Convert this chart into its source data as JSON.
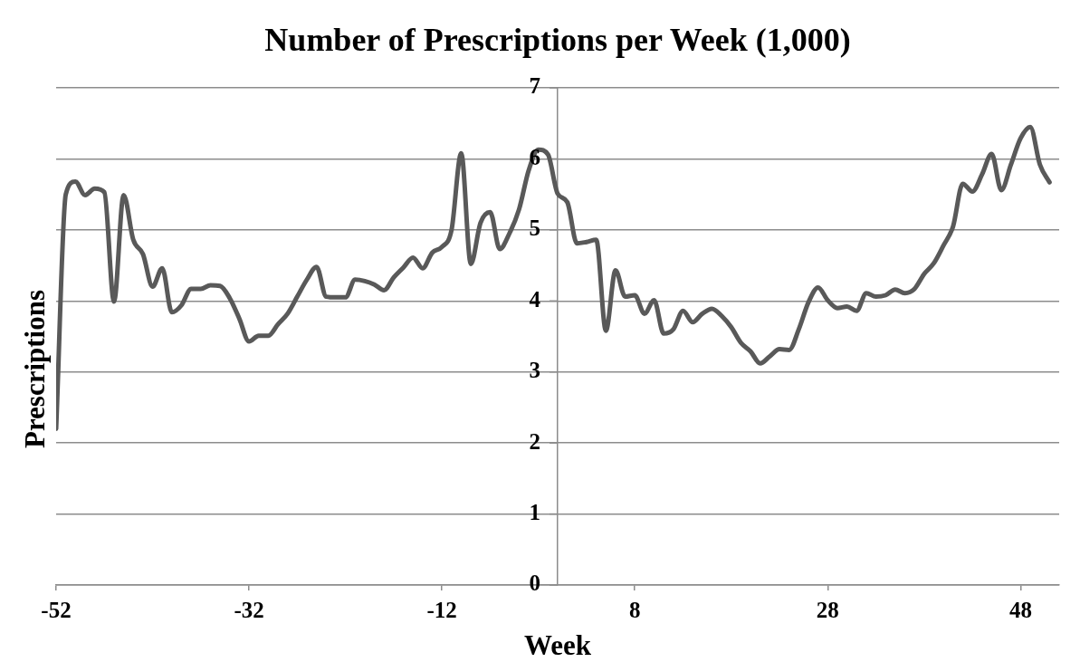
{
  "chart_data": {
    "type": "line",
    "title": "Number of Prescriptions per Week (1,000)",
    "xlabel": "Week",
    "ylabel": "Prescriptions",
    "x": [
      -52,
      -51,
      -50,
      -49,
      -48,
      -47,
      -46,
      -45,
      -44,
      -43,
      -42,
      -41,
      -40,
      -39,
      -38,
      -37,
      -36,
      -35,
      -34,
      -33,
      -32,
      -31,
      -30,
      -29,
      -28,
      -27,
      -26,
      -25,
      -24,
      -23,
      -22,
      -21,
      -20,
      -19,
      -18,
      -17,
      -16,
      -15,
      -14,
      -13,
      -12,
      -11,
      -10,
      -9,
      -8,
      -7,
      -6,
      -5,
      -4,
      -3,
      -2,
      -1,
      0,
      1,
      2,
      3,
      4,
      5,
      6,
      7,
      8,
      9,
      10,
      11,
      12,
      13,
      14,
      15,
      16,
      17,
      18,
      19,
      20,
      21,
      22,
      23,
      24,
      25,
      26,
      27,
      28,
      29,
      30,
      31,
      32,
      33,
      34,
      35,
      36,
      37,
      38,
      39,
      40,
      41,
      42,
      43,
      44,
      45,
      46,
      47,
      48,
      49,
      50,
      51
    ],
    "values": [
      2.2,
      5.5,
      5.68,
      5.49,
      5.58,
      5.53,
      3.99,
      5.49,
      4.86,
      4.66,
      4.2,
      4.46,
      3.84,
      3.94,
      4.17,
      4.17,
      4.22,
      4.21,
      4.04,
      3.75,
      3.43,
      3.51,
      3.51,
      3.67,
      3.82,
      4.06,
      4.3,
      4.48,
      4.06,
      4.05,
      4.05,
      4.3,
      4.28,
      4.23,
      4.15,
      4.33,
      4.47,
      4.61,
      4.46,
      4.68,
      4.76,
      5.0,
      6.08,
      4.52,
      5.1,
      5.25,
      4.73,
      4.95,
      5.29,
      5.84,
      6.13,
      6.06,
      5.51,
      5.39,
      4.81,
      4.83,
      4.86,
      3.58,
      4.43,
      4.06,
      4.08,
      3.82,
      4.01,
      3.54,
      3.6,
      3.86,
      3.7,
      3.82,
      3.89,
      3.79,
      3.63,
      3.41,
      3.29,
      3.12,
      3.22,
      3.32,
      3.31,
      3.6,
      3.98,
      4.19,
      4.01,
      3.9,
      3.92,
      3.86,
      4.11,
      4.06,
      4.08,
      4.16,
      4.11,
      4.17,
      4.38,
      4.53,
      4.78,
      5.05,
      5.65,
      5.54,
      5.78,
      6.07,
      5.56,
      5.92,
      6.29,
      6.45,
      5.92,
      5.67
    ],
    "color": "#595959",
    "xlim": [
      -52,
      52
    ],
    "xticks": [
      -52,
      -32,
      -12,
      8,
      28,
      48
    ],
    "ylim": [
      0,
      7
    ],
    "yticks": [
      0,
      1,
      2,
      3,
      4,
      5,
      6,
      7
    ],
    "grid": "y",
    "legend": false,
    "marker": "none",
    "line_style": "solid"
  }
}
